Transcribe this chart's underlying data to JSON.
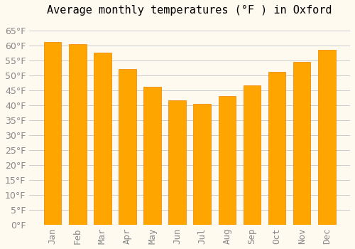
{
  "title": "Average monthly temperatures (°F ) in Oxford",
  "months": [
    "Jan",
    "Feb",
    "Mar",
    "Apr",
    "May",
    "Jun",
    "Jul",
    "Aug",
    "Sep",
    "Oct",
    "Nov",
    "Dec"
  ],
  "values": [
    61,
    60.5,
    57.5,
    52,
    46,
    41.5,
    40.5,
    43,
    46.5,
    51,
    54.5,
    58.5
  ],
  "bar_color_main": "#FFA500",
  "bar_color_edge": "#F08000",
  "background_color": "#FFFAF0",
  "grid_color": "#CCCCCC",
  "text_color": "#888888",
  "ylim": [
    0,
    68
  ],
  "yticks": [
    0,
    5,
    10,
    15,
    20,
    25,
    30,
    35,
    40,
    45,
    50,
    55,
    60,
    65
  ],
  "title_fontsize": 11,
  "tick_fontsize": 9
}
